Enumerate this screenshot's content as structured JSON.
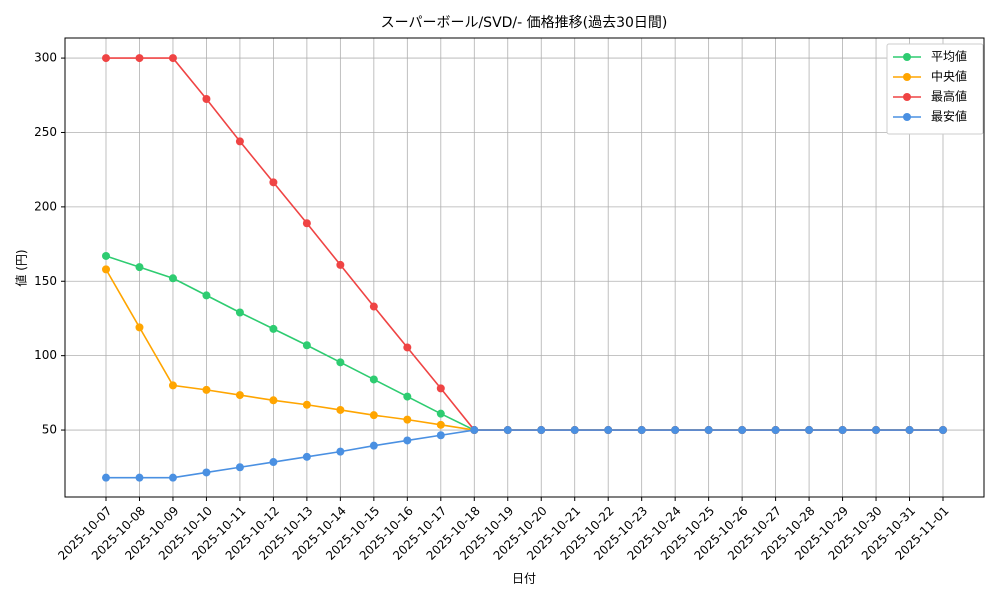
{
  "chart_data": {
    "type": "line",
    "title": "スーパーボール/SVD/- 価格推移(過去30日間)",
    "x_label": "日付",
    "y_label": "値 (円)",
    "categories": [
      "2025-10-07",
      "2025-10-08",
      "2025-10-09",
      "2025-10-10",
      "2025-10-11",
      "2025-10-12",
      "2025-10-13",
      "2025-10-14",
      "2025-10-15",
      "2025-10-16",
      "2025-10-17",
      "2025-10-18",
      "2025-10-19",
      "2025-10-20",
      "2025-10-21",
      "2025-10-22",
      "2025-10-23",
      "2025-10-24",
      "2025-10-25",
      "2025-10-26",
      "2025-10-27",
      "2025-10-28",
      "2025-10-29",
      "2025-10-30",
      "2025-10-31",
      "2025-11-01"
    ],
    "series": [
      {
        "name": "平均値",
        "color": "#2ecc71",
        "values": [
          167,
          159.5,
          152,
          140.5,
          129,
          118,
          107,
          95.5,
          84,
          72.5,
          61,
          50,
          50,
          50,
          50,
          50,
          50,
          50,
          50,
          50,
          50,
          50,
          50,
          50,
          50,
          50
        ]
      },
      {
        "name": "中央値",
        "color": "#ffa500",
        "values": [
          158,
          119,
          80,
          77,
          73.5,
          70,
          67,
          63.5,
          60,
          57,
          53.5,
          50,
          50,
          50,
          50,
          50,
          50,
          50,
          50,
          50,
          50,
          50,
          50,
          50,
          50,
          50
        ]
      },
      {
        "name": "最高値",
        "color": "#ef4444",
        "values": [
          300,
          300,
          300,
          272.5,
          244,
          216.5,
          189,
          161,
          133,
          105.5,
          78,
          50,
          50,
          50,
          50,
          50,
          50,
          50,
          50,
          50,
          50,
          50,
          50,
          50,
          50,
          50
        ]
      },
      {
        "name": "最安値",
        "color": "#4a90e2",
        "values": [
          18,
          18,
          18,
          21.5,
          25,
          28.5,
          32,
          35.5,
          39.5,
          43,
          46.5,
          50,
          50,
          50,
          50,
          50,
          50,
          50,
          50,
          50,
          50,
          50,
          50,
          50,
          50,
          50
        ]
      }
    ],
    "ylim": [
      5,
      313.5
    ],
    "yticks": [
      50,
      100,
      150,
      200,
      250,
      300
    ],
    "grid": true,
    "legend": "upper right"
  }
}
